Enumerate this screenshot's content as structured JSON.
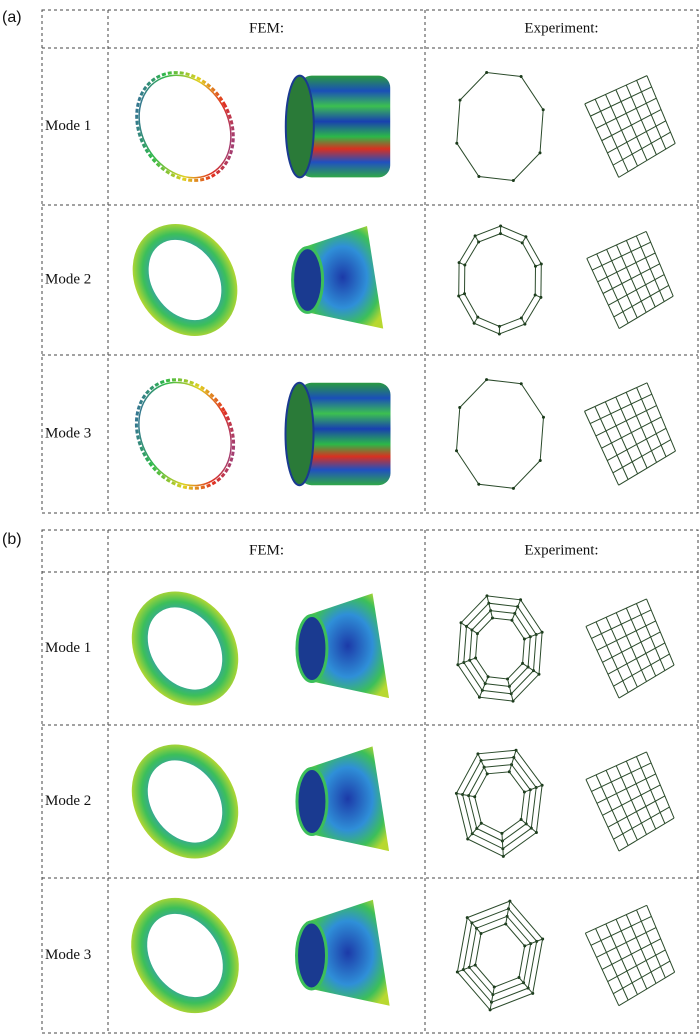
{
  "panels": [
    {
      "label": "(a)",
      "header": [
        "FEM:",
        "Experiment:"
      ],
      "rows": [
        "Mode 1",
        "Mode 2",
        "Mode 3"
      ]
    },
    {
      "label": "(b)",
      "header": [
        "FEM:",
        "Experiment:"
      ],
      "rows": [
        "Mode 1",
        "Mode 2",
        "Mode 3"
      ]
    }
  ]
}
